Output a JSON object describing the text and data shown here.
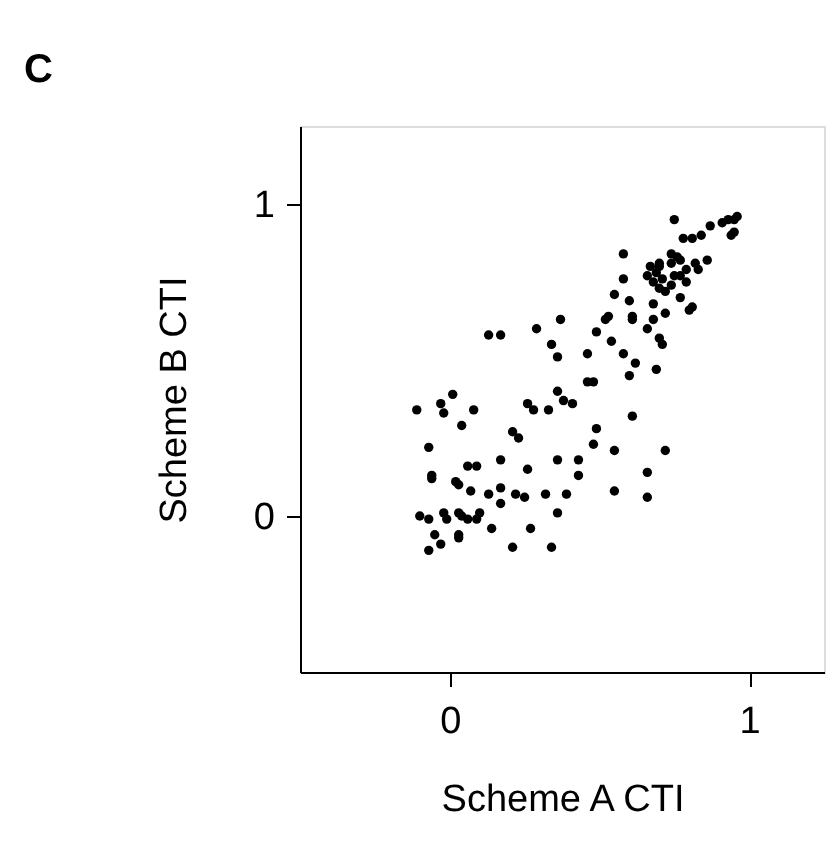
{
  "chart_data": {
    "type": "scatter",
    "title": "C",
    "xlabel": "Scheme A CTI",
    "ylabel": "Scheme B CTI",
    "xlim": [
      -0.5,
      1.25
    ],
    "ylim": [
      -0.5,
      1.25
    ],
    "xticks": [
      0,
      1
    ],
    "yticks": [
      0,
      1
    ],
    "grid": false,
    "legend": false,
    "marker": "circle",
    "series": [
      {
        "color": "#000000",
        "x": [
          -0.11,
          -0.03,
          -0.02,
          0.01,
          0.08,
          0.04,
          -0.07,
          -0.06,
          -0.06,
          -0.1,
          -0.07,
          -0.05,
          -0.07,
          -0.03,
          -0.02,
          -0.01,
          0.02,
          0.03,
          0.03,
          0.04,
          0.06,
          0.09,
          0.07,
          0.06,
          0.09,
          0.1,
          0.03,
          0.03,
          0.13,
          0.17,
          0.29,
          0.13,
          0.17,
          0.17,
          0.17,
          0.14,
          0.21,
          0.23,
          0.22,
          0.25,
          0.26,
          0.21,
          0.27,
          0.26,
          0.28,
          0.33,
          0.32,
          0.34,
          0.36,
          0.36,
          0.39,
          0.34,
          0.36,
          0.37,
          0.36,
          0.38,
          0.41,
          0.43,
          0.43,
          0.46,
          0.46,
          0.48,
          0.49,
          0.52,
          0.53,
          0.55,
          0.54,
          0.58,
          0.6,
          0.62,
          0.61,
          0.61,
          0.58,
          0.58,
          0.6,
          0.66,
          0.68,
          0.68,
          0.69,
          0.7,
          0.71,
          0.49,
          0.48,
          0.55,
          0.61,
          0.55,
          0.66,
          0.66,
          0.72,
          0.66,
          0.67,
          0.69,
          0.71,
          0.7,
          0.74,
          0.74,
          0.76,
          0.75,
          0.72,
          0.77,
          0.72,
          0.8,
          0.81,
          0.79,
          0.82,
          0.83,
          0.86,
          0.78,
          0.81,
          0.84,
          0.87,
          0.75,
          0.91,
          0.93,
          0.94,
          0.95,
          0.96,
          0.95,
          0.7,
          0.77,
          0.79,
          0.68,
          0.7,
          0.74,
          0.77
        ],
        "values": [
          0.34,
          0.36,
          0.33,
          0.39,
          0.34,
          0.29,
          0.22,
          0.13,
          0.12,
          0.0,
          -0.01,
          -0.06,
          -0.11,
          -0.09,
          0.01,
          -0.01,
          0.11,
          0.1,
          0.01,
          0.0,
          0.16,
          0.16,
          0.08,
          -0.01,
          -0.01,
          0.01,
          -0.06,
          -0.07,
          0.58,
          0.58,
          0.6,
          0.07,
          0.09,
          0.04,
          0.18,
          -0.04,
          0.27,
          0.25,
          0.07,
          0.06,
          0.15,
          -0.1,
          -0.04,
          0.36,
          0.34,
          0.34,
          0.07,
          -0.1,
          0.18,
          0.01,
          0.07,
          0.55,
          0.51,
          0.63,
          0.4,
          0.37,
          0.36,
          0.18,
          0.13,
          0.52,
          0.43,
          0.43,
          0.59,
          0.63,
          0.64,
          0.71,
          0.56,
          0.52,
          0.45,
          0.49,
          0.64,
          0.63,
          0.84,
          0.76,
          0.69,
          0.6,
          0.68,
          0.63,
          0.47,
          0.57,
          0.55,
          0.28,
          0.23,
          0.21,
          0.32,
          0.08,
          0.14,
          0.06,
          0.21,
          0.77,
          0.8,
          0.78,
          0.76,
          0.8,
          0.84,
          0.81,
          0.83,
          0.77,
          0.72,
          0.7,
          0.65,
          0.66,
          0.67,
          0.75,
          0.81,
          0.79,
          0.82,
          0.89,
          0.89,
          0.9,
          0.93,
          0.95,
          0.94,
          0.95,
          0.9,
          0.91,
          0.96,
          0.95,
          0.81,
          0.82,
          0.79,
          0.75,
          0.73,
          0.74,
          0.77
        ]
      }
    ]
  }
}
